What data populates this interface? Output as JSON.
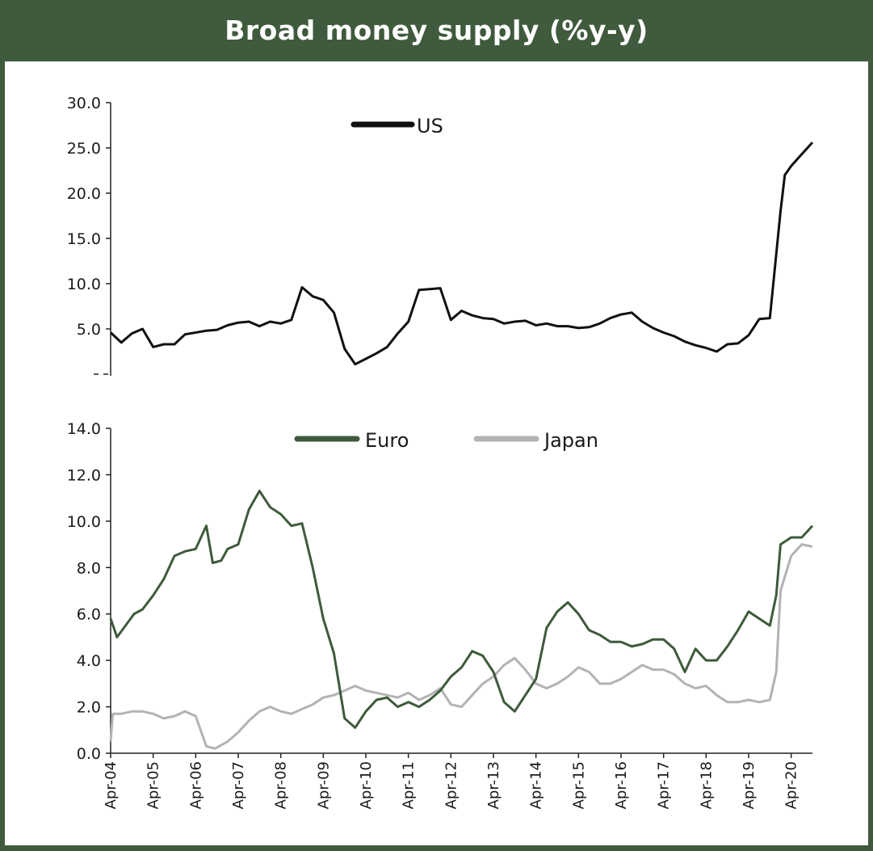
{
  "title": "Broad money supply (%y-y)",
  "colors": {
    "frame": "#3f5a3c",
    "us": "#111111",
    "euro": "#3f5a3c",
    "japan": "#b3b3b6"
  },
  "chart_data": [
    {
      "type": "line",
      "title": "",
      "ylim": [
        0,
        30
      ],
      "yticks": [
        "30.0",
        "25.0",
        "20.0",
        "15.0",
        "10.0",
        "5.0"
      ],
      "yticks_values": [
        30,
        25,
        20,
        15,
        10,
        5
      ],
      "legend_position": "top-center",
      "series": [
        {
          "name": "US",
          "color": "#111111",
          "x": [
            2004.25,
            2004.5,
            2004.75,
            2005.0,
            2005.25,
            2005.5,
            2005.75,
            2006.0,
            2006.25,
            2006.5,
            2006.75,
            2007.0,
            2007.25,
            2007.5,
            2007.75,
            2008.0,
            2008.25,
            2008.5,
            2008.75,
            2009.0,
            2009.25,
            2009.5,
            2009.75,
            2010.0,
            2010.25,
            2010.5,
            2010.75,
            2011.0,
            2011.25,
            2011.5,
            2011.75,
            2012.0,
            2012.25,
            2012.5,
            2012.75,
            2013.0,
            2013.25,
            2013.5,
            2013.75,
            2014.0,
            2014.25,
            2014.5,
            2014.75,
            2015.0,
            2015.25,
            2015.5,
            2015.75,
            2016.0,
            2016.25,
            2016.5,
            2016.75,
            2017.0,
            2017.25,
            2017.5,
            2017.75,
            2018.0,
            2018.25,
            2018.5,
            2018.75,
            2019.0,
            2019.25,
            2019.5,
            2019.75,
            2020.0,
            2020.1,
            2020.25,
            2020.5,
            2020.75
          ],
          "y": [
            4.6,
            3.5,
            4.5,
            5.0,
            3.0,
            3.3,
            3.3,
            4.4,
            4.6,
            4.8,
            4.9,
            5.4,
            5.7,
            5.8,
            5.3,
            5.8,
            5.6,
            6.0,
            9.6,
            8.6,
            8.2,
            6.8,
            2.8,
            1.1,
            1.7,
            2.3,
            3.0,
            4.5,
            5.8,
            9.3,
            9.4,
            9.5,
            6.0,
            7.0,
            6.5,
            6.2,
            6.1,
            5.6,
            5.8,
            5.9,
            5.4,
            5.6,
            5.3,
            5.3,
            5.1,
            5.2,
            5.6,
            6.2,
            6.6,
            6.8,
            5.8,
            5.1,
            4.6,
            4.2,
            3.6,
            3.2,
            2.9,
            2.5,
            3.3,
            3.4,
            4.3,
            6.1,
            6.2,
            18.0,
            22.0,
            23.0,
            24.3,
            25.6
          ]
        }
      ]
    },
    {
      "type": "line",
      "title": "",
      "ylim": [
        0,
        14
      ],
      "yticks": [
        "14.0",
        "12.0",
        "10.0",
        "8.0",
        "6.0",
        "4.0",
        "2.0",
        "0.0"
      ],
      "yticks_values": [
        14,
        12,
        10,
        8,
        6,
        4,
        2,
        0
      ],
      "categories": [
        "Apr-04",
        "Apr-05",
        "Apr-06",
        "Apr-07",
        "Apr-08",
        "Apr-09",
        "Apr-10",
        "Apr-11",
        "Apr-12",
        "Apr-13",
        "Apr-14",
        "Apr-15",
        "Apr-16",
        "Apr-17",
        "Apr-18",
        "Apr-19",
        "Apr-20"
      ],
      "legend_position": "top-center",
      "series": [
        {
          "name": "Euro",
          "color": "#3f5a3c",
          "x": [
            2004.25,
            2004.4,
            2004.6,
            2004.8,
            2005.0,
            2005.25,
            2005.5,
            2005.75,
            2006.0,
            2006.25,
            2006.5,
            2006.65,
            2006.85,
            2007.0,
            2007.25,
            2007.5,
            2007.75,
            2008.0,
            2008.25,
            2008.5,
            2008.75,
            2009.0,
            2009.25,
            2009.5,
            2009.75,
            2010.0,
            2010.25,
            2010.5,
            2010.75,
            2011.0,
            2011.25,
            2011.5,
            2011.75,
            2012.0,
            2012.25,
            2012.5,
            2012.75,
            2013.0,
            2013.25,
            2013.5,
            2013.75,
            2014.0,
            2014.25,
            2014.5,
            2014.75,
            2015.0,
            2015.25,
            2015.5,
            2015.75,
            2016.0,
            2016.25,
            2016.5,
            2016.75,
            2017.0,
            2017.25,
            2017.5,
            2017.75,
            2018.0,
            2018.25,
            2018.5,
            2018.75,
            2019.0,
            2019.25,
            2019.5,
            2019.75,
            2019.9,
            2020.0,
            2020.25,
            2020.5,
            2020.75
          ],
          "y": [
            5.8,
            5.0,
            5.5,
            6.0,
            6.2,
            6.8,
            7.5,
            8.5,
            8.7,
            8.8,
            9.8,
            8.2,
            8.3,
            8.8,
            9.0,
            10.5,
            11.3,
            10.6,
            10.3,
            9.8,
            9.9,
            8.0,
            5.8,
            4.3,
            1.5,
            1.1,
            1.8,
            2.3,
            2.4,
            2.0,
            2.2,
            2.0,
            2.3,
            2.7,
            3.3,
            3.7,
            4.4,
            4.2,
            3.5,
            2.2,
            1.8,
            2.5,
            3.2,
            5.4,
            6.1,
            6.5,
            6.0,
            5.3,
            5.1,
            4.8,
            4.8,
            4.6,
            4.7,
            4.9,
            4.9,
            4.5,
            3.5,
            4.5,
            4.0,
            4.0,
            4.6,
            5.3,
            6.1,
            5.8,
            5.5,
            6.8,
            9.0,
            9.3,
            9.3,
            9.8
          ]
        },
        {
          "name": "Japan",
          "color": "#b3b3b6",
          "x": [
            2004.25,
            2004.3,
            2004.5,
            2004.75,
            2005.0,
            2005.25,
            2005.5,
            2005.75,
            2006.0,
            2006.25,
            2006.5,
            2006.7,
            2007.0,
            2007.25,
            2007.5,
            2007.75,
            2008.0,
            2008.25,
            2008.5,
            2008.75,
            2009.0,
            2009.25,
            2009.5,
            2009.75,
            2010.0,
            2010.25,
            2010.5,
            2010.75,
            2011.0,
            2011.25,
            2011.5,
            2011.75,
            2012.0,
            2012.25,
            2012.5,
            2012.75,
            2013.0,
            2013.25,
            2013.5,
            2013.75,
            2014.0,
            2014.25,
            2014.5,
            2014.75,
            2015.0,
            2015.25,
            2015.5,
            2015.75,
            2016.0,
            2016.25,
            2016.5,
            2016.75,
            2017.0,
            2017.25,
            2017.5,
            2017.75,
            2018.0,
            2018.25,
            2018.5,
            2018.75,
            2019.0,
            2019.25,
            2019.5,
            2019.75,
            2019.9,
            2020.0,
            2020.25,
            2020.5,
            2020.75
          ],
          "y": [
            0.5,
            1.7,
            1.7,
            1.8,
            1.8,
            1.7,
            1.5,
            1.6,
            1.8,
            1.6,
            0.3,
            0.2,
            0.5,
            0.9,
            1.4,
            1.8,
            2.0,
            1.8,
            1.7,
            1.9,
            2.1,
            2.4,
            2.5,
            2.7,
            2.9,
            2.7,
            2.6,
            2.5,
            2.4,
            2.6,
            2.3,
            2.5,
            2.8,
            2.1,
            2.0,
            2.5,
            3.0,
            3.3,
            3.8,
            4.1,
            3.6,
            3.0,
            2.8,
            3.0,
            3.3,
            3.7,
            3.5,
            3.0,
            3.0,
            3.2,
            3.5,
            3.8,
            3.6,
            3.6,
            3.4,
            3.0,
            2.8,
            2.9,
            2.5,
            2.2,
            2.2,
            2.3,
            2.2,
            2.3,
            3.5,
            7.0,
            8.5,
            9.0,
            8.9
          ]
        }
      ]
    }
  ]
}
